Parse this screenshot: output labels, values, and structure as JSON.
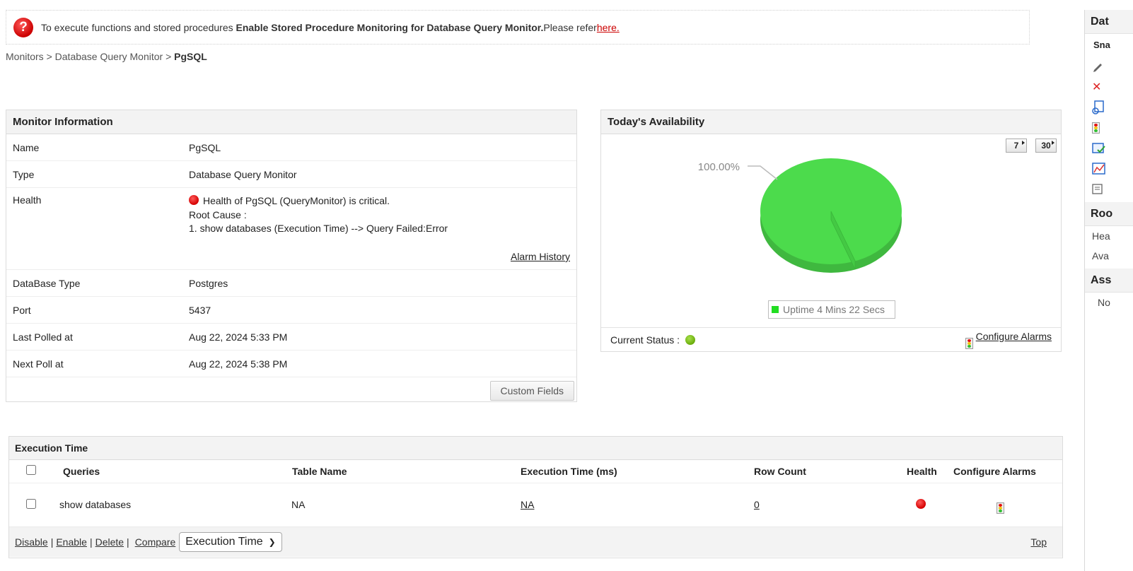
{
  "notice": {
    "text_before": "To execute functions and stored procedures ",
    "bold_text": "Enable Stored Procedure Monitoring for Database Query Monitor.",
    "text_after": "Please refer ",
    "link_text": "here."
  },
  "breadcrumb": {
    "items": [
      "Monitors",
      "Database Query Monitor"
    ],
    "separator": ">",
    "current": "PgSQL"
  },
  "monitor_info": {
    "title": "Monitor Information",
    "name_label": "Name",
    "name_value": "PgSQL",
    "type_label": "Type",
    "type_value": "Database Query Monitor",
    "health_label": "Health",
    "health_message": "Health of PgSQL (QueryMonitor) is critical.",
    "root_cause_label": "Root Cause :",
    "root_cause_item": "1. show databases (Execution Time) --> Query Failed:Error",
    "alarm_history": "Alarm History",
    "dbtype_label": "DataBase Type",
    "dbtype_value": "Postgres",
    "port_label": "Port",
    "port_value": "5437",
    "last_polled_label": "Last Polled at",
    "last_polled_value": "Aug 22, 2024 5:33 PM",
    "next_poll_label": "Next Poll at",
    "next_poll_value": "Aug 22, 2024 5:38 PM",
    "custom_fields_button": "Custom Fields",
    "health_status_color": "#d40000"
  },
  "availability": {
    "title": "Today's Availability",
    "range_7": "7",
    "range_30": "30",
    "current_status_label": "Current Status :",
    "current_status_color": "#7ab51d",
    "configure_alarms": "Configure Alarms"
  },
  "chart_data": {
    "type": "pie",
    "title": "",
    "slices": [
      {
        "label": "Uptime 4 Mins 22 Secs",
        "value": 100.0,
        "color": "#4cdb4c"
      }
    ],
    "data_labels": [
      "100.00%"
    ],
    "legend": {
      "placement": "bottom",
      "entries": [
        "Uptime 4 Mins 22 Secs"
      ]
    }
  },
  "execution_time": {
    "title": "Execution Time",
    "columns": [
      "Queries",
      "Table Name",
      "Execution Time (ms)",
      "Row Count",
      "Health",
      "Configure Alarms"
    ],
    "rows": [
      {
        "query": "show databases",
        "table_name": "NA",
        "exec_time": "NA",
        "row_count": "0",
        "health": "critical"
      }
    ],
    "actions": {
      "disable": "Disable",
      "enable": "Enable",
      "delete": "Delete",
      "compare": "Compare",
      "separator": "|"
    },
    "attribute_select": "Execution Time",
    "top_link": "Top"
  },
  "sidebar": {
    "head": "Dat",
    "sub": "Sna",
    "section2": "Roo",
    "items2": [
      "Hea",
      "Ava"
    ],
    "section3": "Ass",
    "items3": [
      "No"
    ]
  }
}
